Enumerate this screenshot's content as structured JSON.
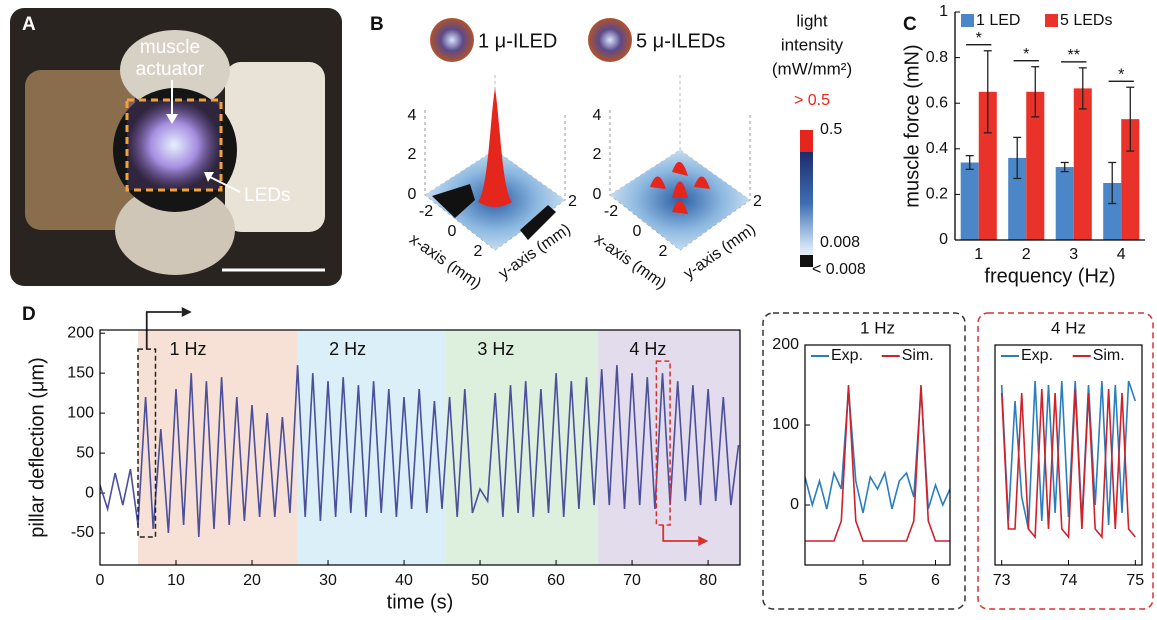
{
  "panel_labels": [
    "A",
    "B",
    "C",
    "D"
  ],
  "panel_a": {
    "callouts": [
      "muscle",
      "actuator",
      "LEDs"
    ]
  },
  "panel_b": {
    "plots": [
      {
        "title": "1 μ-ILED"
      },
      {
        "title": "5 μ-ILEDs"
      }
    ],
    "z_ticks": [
      "0",
      "2",
      "4"
    ],
    "x_ticks": [
      "-2",
      "0",
      "2"
    ],
    "y_ticks": [
      "2"
    ],
    "x_label": "x-axis (mm)",
    "y_label": "y-axis (mm)",
    "colorbar": {
      "title_lines": [
        "light",
        "intensity",
        "(mW/mm²)"
      ],
      "labels": [
        "> 0.5",
        "0.5",
        "0.008",
        "< 0.008"
      ]
    }
  },
  "chart_data": [
    {
      "type": "bar",
      "x_label": "frequency (Hz)",
      "y_label": "muscle force (mN)",
      "categories": [
        "1",
        "2",
        "3",
        "4"
      ],
      "series": [
        {
          "name": "1 LED",
          "color": "#4a86c8",
          "values": [
            0.34,
            0.36,
            0.32,
            0.25
          ],
          "errors": [
            0.03,
            0.09,
            0.02,
            0.09
          ]
        },
        {
          "name": "5 LEDs",
          "color": "#e8322a",
          "values": [
            0.65,
            0.65,
            0.665,
            0.53
          ],
          "errors": [
            0.18,
            0.11,
            0.09,
            0.14
          ]
        }
      ],
      "significance": [
        "*",
        "*",
        "**",
        "*"
      ],
      "ylim": [
        0,
        1
      ],
      "yticks": [
        0,
        0.2,
        0.4,
        0.6,
        0.8,
        1
      ]
    },
    {
      "type": "line",
      "x_label": "time (s)",
      "y_label": "pillar deflection (μm)",
      "x": [
        0,
        1,
        2,
        3,
        4,
        5,
        6,
        7,
        8,
        9,
        10,
        11,
        12,
        13,
        14,
        15,
        16,
        17,
        18,
        19,
        20,
        21,
        22,
        23,
        24,
        25,
        26,
        27,
        28,
        29,
        30,
        31,
        32,
        33,
        34,
        35,
        36,
        37,
        38,
        39,
        40,
        41,
        42,
        43,
        44,
        45,
        46,
        47,
        48,
        49,
        50,
        51,
        52,
        53,
        54,
        55,
        56,
        57,
        58,
        59,
        60,
        61,
        62,
        63,
        64,
        65,
        66,
        67,
        68,
        69,
        70,
        71,
        72,
        73,
        74,
        75,
        76,
        77,
        78,
        79,
        80,
        81,
        82,
        83,
        84
      ],
      "series": [
        {
          "color": "#4b4f9c",
          "values": [
            10,
            -20,
            25,
            -15,
            30,
            -40,
            120,
            -45,
            80,
            -50,
            130,
            -40,
            150,
            -55,
            140,
            -45,
            145,
            -40,
            120,
            -35,
            110,
            -30,
            100,
            -30,
            95,
            -25,
            160,
            -30,
            150,
            -35,
            140,
            -30,
            145,
            -25,
            135,
            -30,
            140,
            -25,
            130,
            -30,
            120,
            -20,
            130,
            -25,
            115,
            -20,
            120,
            -30,
            130,
            -25,
            5,
            -10,
            125,
            -30,
            135,
            -25,
            140,
            -30,
            130,
            -25,
            150,
            -30,
            140,
            -20,
            145,
            -15,
            155,
            -15,
            160,
            -20,
            150,
            -15,
            145,
            -20,
            150,
            -15,
            140,
            -10,
            135,
            -15,
            130,
            -10,
            120,
            -15,
            60
          ]
        }
      ],
      "regions": [
        {
          "label": "1 Hz",
          "start": 5,
          "end": 26,
          "color": "#f6dccf"
        },
        {
          "label": "2 Hz",
          "start": 26,
          "end": 45.5,
          "color": "#d4ecf7"
        },
        {
          "label": "3 Hz",
          "start": 45.5,
          "end": 65.5,
          "color": "#d7ecd7"
        },
        {
          "label": "4 Hz",
          "start": 65.5,
          "end": 85,
          "color": "#ddd6ea"
        }
      ],
      "highlight_boxes": [
        {
          "color": "#222222",
          "start": 5,
          "end": 7.3,
          "low": -55,
          "high": 180
        },
        {
          "color": "#d93030",
          "start": 73.2,
          "end": 75,
          "low": -40,
          "high": 165
        }
      ],
      "xlim": [
        0,
        84.2
      ],
      "xticks": [
        0,
        10,
        20,
        30,
        40,
        50,
        60,
        70,
        80
      ],
      "ylim": [
        -90,
        204
      ],
      "yticks": [
        -50,
        0,
        50,
        100,
        150,
        200
      ]
    },
    {
      "type": "line",
      "title": "1 Hz",
      "x": [
        4.2,
        4.3,
        4.4,
        4.5,
        4.6,
        4.7,
        4.8,
        4.9,
        5.0,
        5.1,
        5.2,
        5.3,
        5.4,
        5.5,
        5.6,
        5.7,
        5.8,
        5.9,
        6.0,
        6.1,
        6.2
      ],
      "series": [
        {
          "name": "Exp.",
          "color": "#2a7ec0",
          "values": [
            35,
            0,
            30,
            -5,
            40,
            20,
            145,
            30,
            -10,
            35,
            20,
            40,
            -5,
            30,
            40,
            10,
            145,
            -5,
            25,
            0,
            20
          ]
        },
        {
          "name": "Sim.",
          "color": "#d0202a",
          "values": [
            -45,
            -45,
            -45,
            -45,
            -45,
            -20,
            150,
            -20,
            -45,
            -45,
            -45,
            -45,
            -45,
            -45,
            -45,
            -20,
            150,
            -20,
            -45,
            -45,
            -45
          ]
        }
      ],
      "xlim": [
        4.2,
        6.2
      ],
      "xticks": [
        5,
        6
      ],
      "ylim": [
        -75,
        200
      ],
      "yticks": [
        0,
        100,
        200
      ]
    },
    {
      "type": "line",
      "title": "4 Hz",
      "x": [
        73.0,
        73.1,
        73.2,
        73.3,
        73.4,
        73.5,
        73.6,
        73.7,
        73.8,
        73.9,
        74.0,
        74.1,
        74.2,
        74.3,
        74.4,
        74.5,
        74.6,
        74.7,
        74.8,
        74.9,
        75.0
      ],
      "series": [
        {
          "name": "Exp.",
          "color": "#2a7ec0",
          "values": [
            150,
            -20,
            130,
            10,
            -30,
            155,
            -20,
            150,
            -10,
            155,
            -15,
            155,
            -20,
            150,
            0,
            155,
            -25,
            150,
            -10,
            155,
            130
          ]
        },
        {
          "name": "Sim.",
          "color": "#d0202a",
          "values": [
            140,
            -30,
            -30,
            140,
            -30,
            -40,
            145,
            -30,
            140,
            -30,
            -40,
            145,
            -30,
            140,
            -30,
            -40,
            145,
            -30,
            140,
            -30,
            -40
          ]
        }
      ],
      "xlim": [
        72.9,
        75.1
      ],
      "xticks": [
        73,
        74,
        75
      ],
      "ylim": [
        -75,
        200
      ]
    }
  ]
}
